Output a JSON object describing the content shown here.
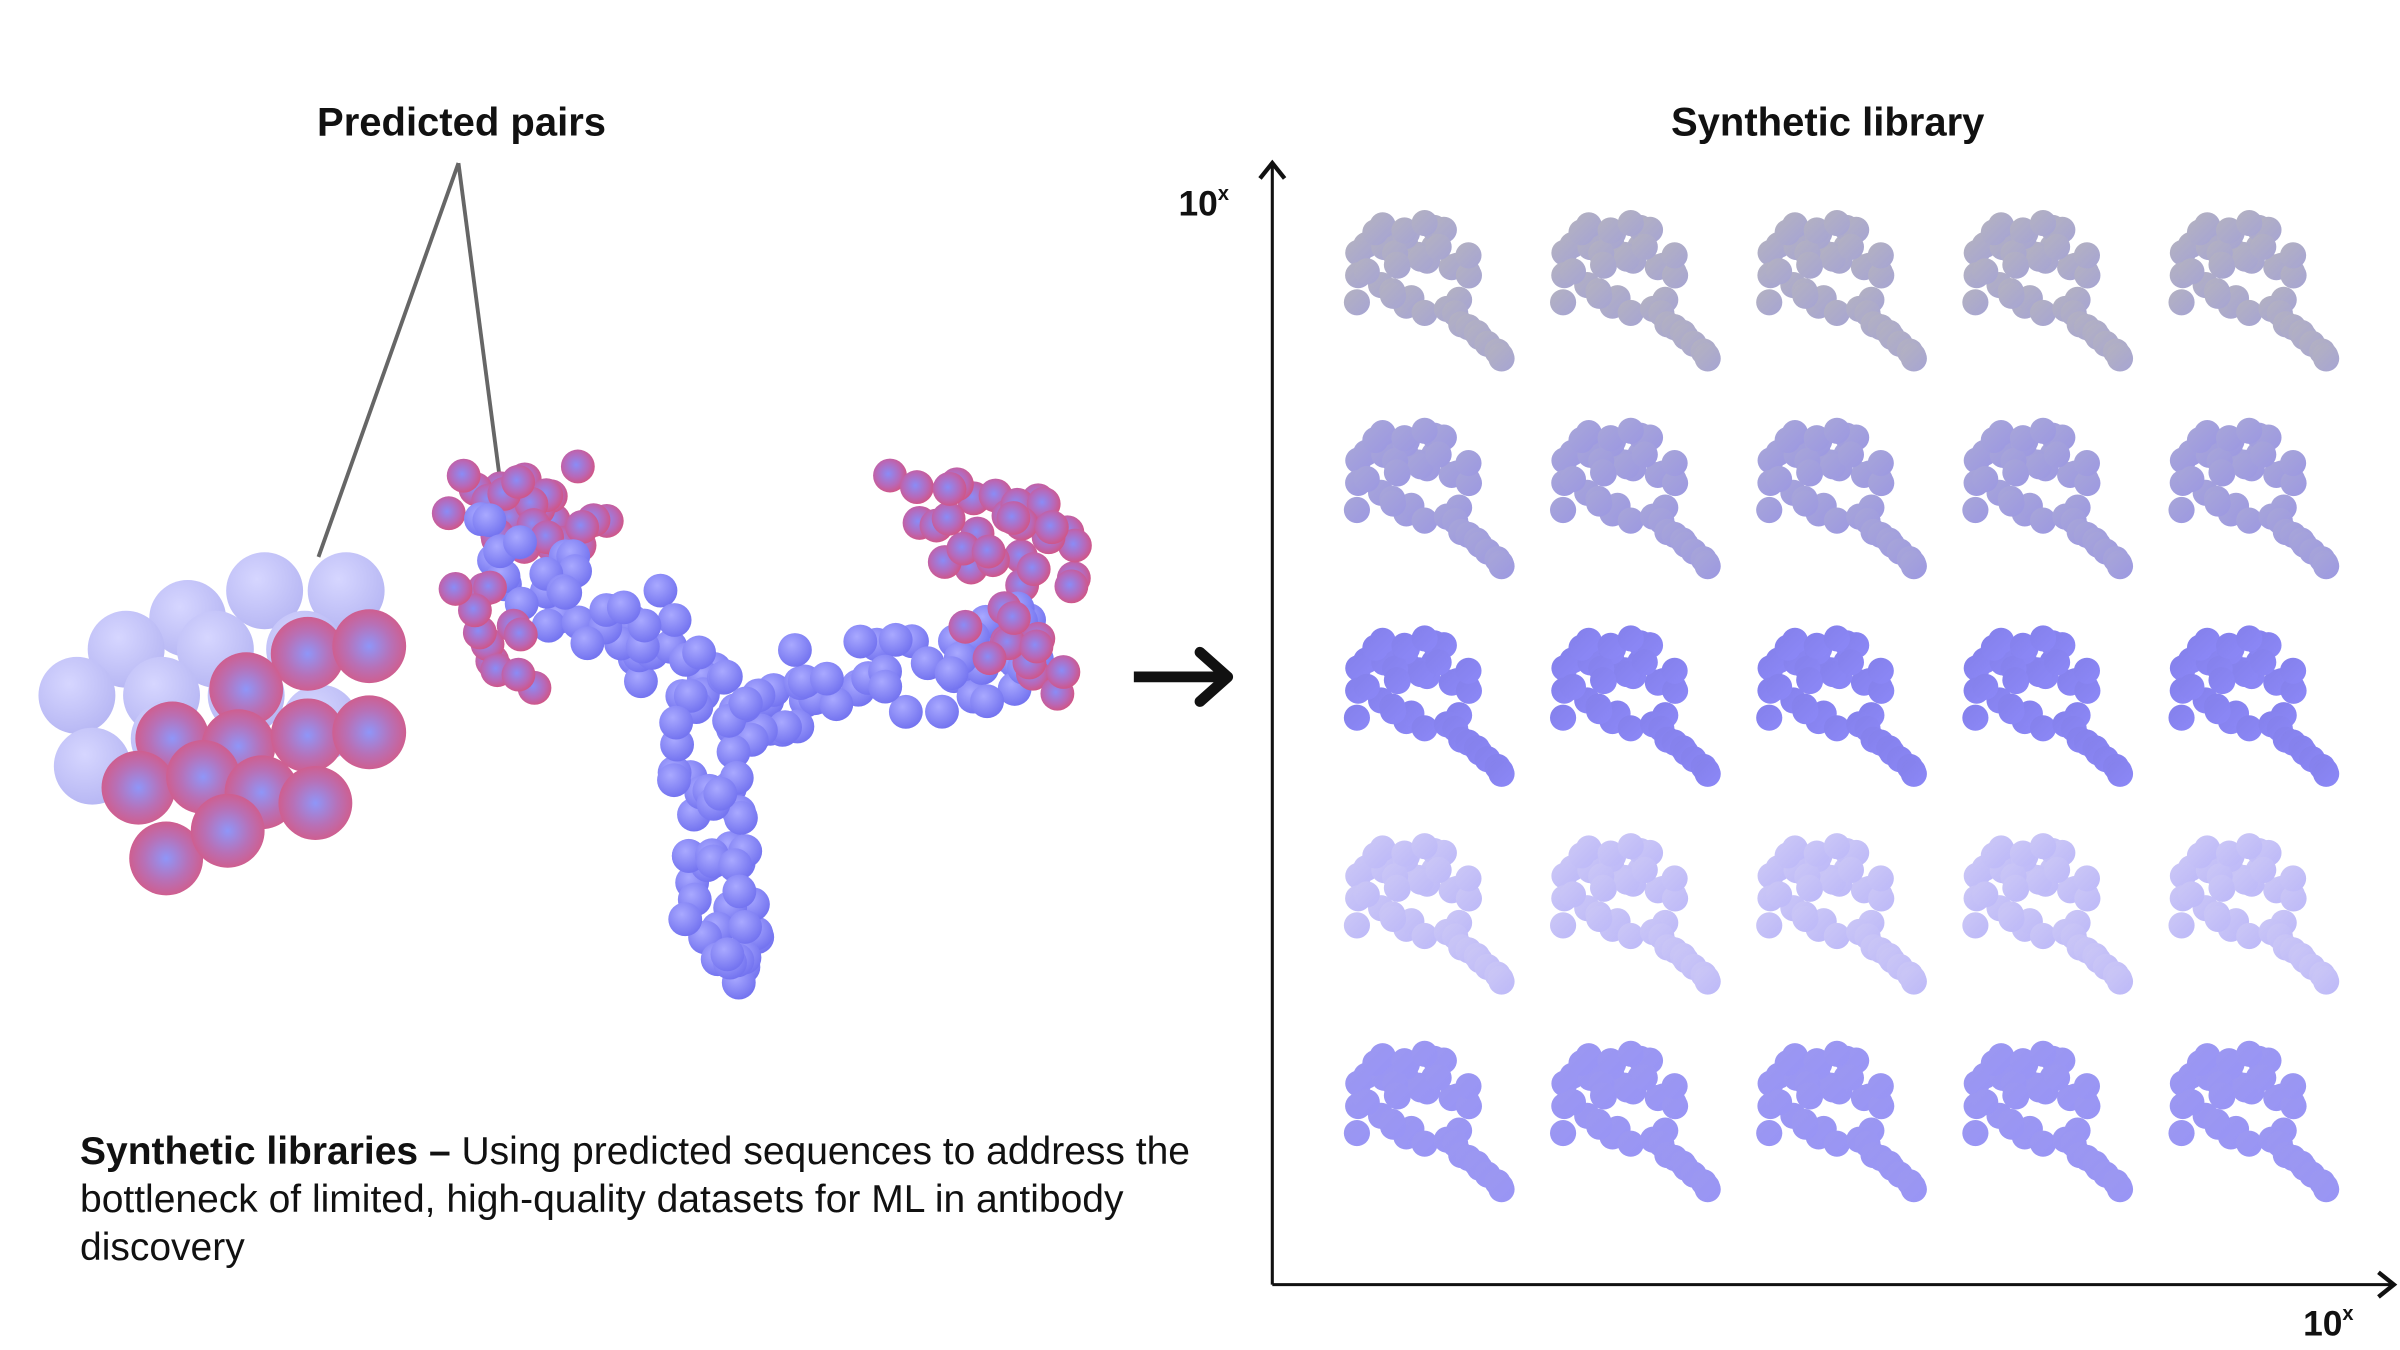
{
  "left": {
    "title": "Predicted pairs"
  },
  "right": {
    "title": "Synthetic library",
    "y_axis_label": {
      "base": "10",
      "exponent": "x"
    },
    "x_axis_label": {
      "base": "10",
      "exponent": "x"
    }
  },
  "caption": {
    "lead": "Synthetic libraries –",
    "text": "Using predicted sequences to address the bottleneck of limited, high-quality datasets for ML in antibody discovery"
  }
}
